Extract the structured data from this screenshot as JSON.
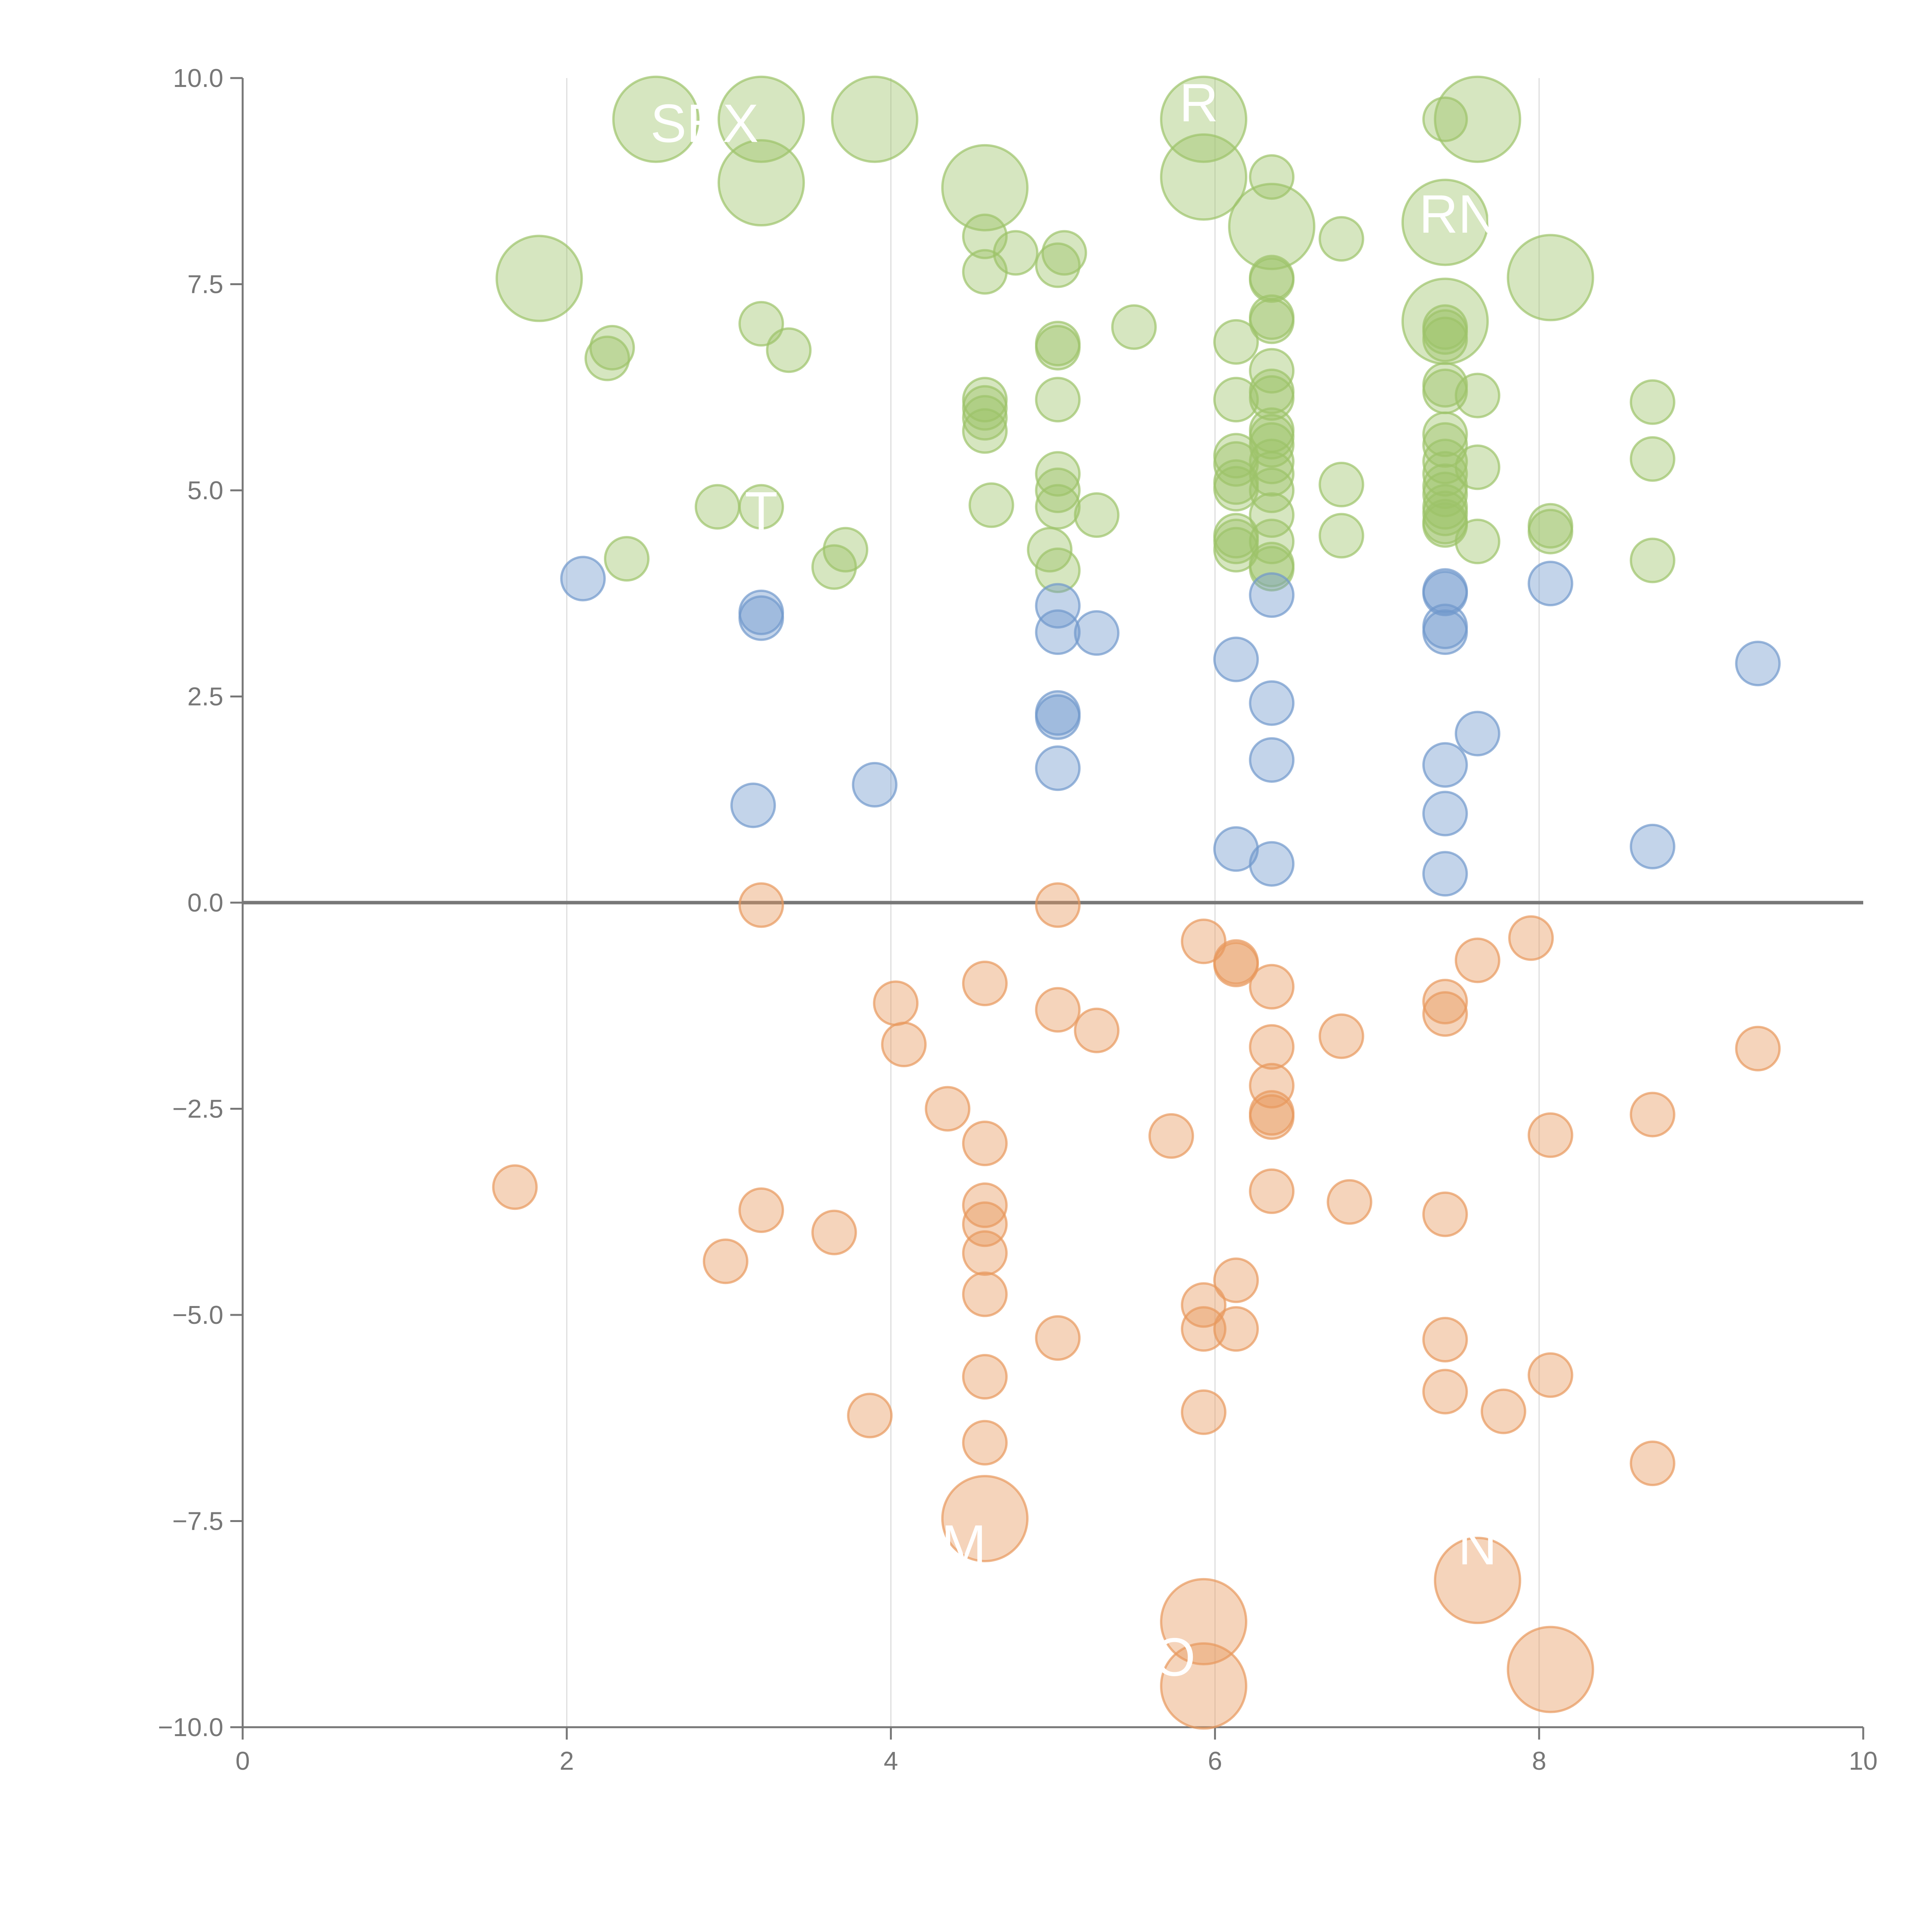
{
  "colors": {
    "positive_high": "#9dc36a",
    "positive_low": "#7098cc",
    "negative": "#e8995c",
    "axis": "#777777",
    "grid": "#dddddd"
  },
  "chart_data": {
    "type": "scatter",
    "title": "",
    "xlabel": "",
    "ylabel": "",
    "xlim": [
      0,
      10
    ],
    "ylim": [
      -10,
      10
    ],
    "x_ticks": [
      "0",
      "2",
      "4",
      "6",
      "8",
      "10"
    ],
    "y_ticks": [
      "10.0",
      "7.5",
      "5.0",
      "2.5",
      "0.0",
      "−2.5",
      "−5.0",
      "−7.5",
      "−10.0"
    ],
    "x_tick_values": [
      0,
      2,
      4,
      6,
      8,
      10
    ],
    "y_tick_values": [
      10,
      7.5,
      5,
      2.5,
      0,
      -2.5,
      -5,
      -7.5,
      -10
    ],
    "grid_x": [
      2,
      4,
      6,
      8
    ],
    "zero_line": 0,
    "series": [
      {
        "group": "positive_high",
        "points": [
          [
            2.55,
            9.5,
            1
          ],
          [
            3.2,
            9.5,
            1
          ],
          [
            3.9,
            9.5,
            1
          ],
          [
            5.93,
            9.5,
            1
          ],
          [
            7.42,
            9.5,
            0
          ],
          [
            7.62,
            9.5,
            1
          ],
          [
            3.2,
            8.73,
            1
          ],
          [
            4.58,
            8.67,
            1
          ],
          [
            5.93,
            8.8,
            1
          ],
          [
            6.35,
            8.8,
            0
          ],
          [
            6.35,
            8.2,
            1
          ],
          [
            7.42,
            8.25,
            1
          ],
          [
            6.78,
            8.05,
            0
          ],
          [
            1.83,
            7.57,
            1
          ],
          [
            4.58,
            8.08,
            0
          ],
          [
            4.77,
            7.88,
            0
          ],
          [
            5.07,
            7.88,
            0
          ],
          [
            5.03,
            7.73,
            0
          ],
          [
            4.58,
            7.65,
            0
          ],
          [
            8.07,
            7.58,
            1
          ],
          [
            6.35,
            7.58,
            0
          ],
          [
            6.35,
            7.55,
            0
          ],
          [
            7.42,
            7.05,
            1
          ],
          [
            6.35,
            7.1,
            0
          ],
          [
            6.35,
            7.05,
            0
          ],
          [
            2.28,
            6.73,
            0
          ],
          [
            2.25,
            6.6,
            0
          ],
          [
            3.2,
            7.02,
            0
          ],
          [
            3.37,
            6.7,
            0
          ],
          [
            5.5,
            6.98,
            0
          ],
          [
            5.03,
            6.78,
            0
          ],
          [
            5.03,
            6.73,
            0
          ],
          [
            6.13,
            6.8,
            0
          ],
          [
            7.42,
            6.83,
            0
          ],
          [
            7.42,
            6.92,
            0
          ],
          [
            7.42,
            6.98,
            0
          ],
          [
            6.35,
            6.45,
            0
          ],
          [
            6.35,
            6.2,
            0
          ],
          [
            6.35,
            6.12,
            0
          ],
          [
            7.42,
            6.28,
            0
          ],
          [
            7.42,
            6.2,
            0
          ],
          [
            7.62,
            6.15,
            0
          ],
          [
            4.58,
            6.1,
            0
          ],
          [
            4.58,
            6.0,
            0
          ],
          [
            4.58,
            5.88,
            0
          ],
          [
            4.58,
            5.72,
            0
          ],
          [
            5.03,
            6.1,
            0
          ],
          [
            6.13,
            6.1,
            0
          ],
          [
            8.7,
            6.07,
            0
          ],
          [
            6.35,
            5.73,
            0
          ],
          [
            6.35,
            5.65,
            0
          ],
          [
            6.35,
            5.55,
            0
          ],
          [
            7.42,
            5.68,
            0
          ],
          [
            7.42,
            5.55,
            0
          ],
          [
            6.13,
            5.42,
            0
          ],
          [
            6.13,
            5.32,
            0
          ],
          [
            6.35,
            5.35,
            0
          ],
          [
            6.35,
            5.2,
            0
          ],
          [
            7.42,
            5.35,
            0
          ],
          [
            7.42,
            5.2,
            0
          ],
          [
            7.62,
            5.28,
            0
          ],
          [
            8.7,
            5.38,
            0
          ],
          [
            5.03,
            5.2,
            0
          ],
          [
            5.03,
            5.0,
            0
          ],
          [
            5.03,
            4.8,
            0
          ],
          [
            6.13,
            5.1,
            0
          ],
          [
            6.13,
            5.02,
            0
          ],
          [
            6.35,
            5.0,
            0
          ],
          [
            6.78,
            5.07,
            0
          ],
          [
            7.42,
            5.05,
            0
          ],
          [
            7.42,
            4.95,
            0
          ],
          [
            7.42,
            4.8,
            0
          ],
          [
            7.42,
            4.72,
            0
          ],
          [
            7.42,
            4.62,
            0
          ],
          [
            7.42,
            4.58,
            0
          ],
          [
            2.93,
            4.8,
            0
          ],
          [
            3.2,
            4.8,
            0
          ],
          [
            4.62,
            4.82,
            0
          ],
          [
            5.27,
            4.7,
            0
          ],
          [
            6.35,
            4.7,
            0
          ],
          [
            8.07,
            4.57,
            0
          ],
          [
            8.07,
            4.5,
            0
          ],
          [
            6.13,
            4.45,
            0
          ],
          [
            6.13,
            4.38,
            0
          ],
          [
            6.13,
            4.28,
            0
          ],
          [
            6.35,
            4.38,
            0
          ],
          [
            6.35,
            4.1,
            0
          ],
          [
            6.35,
            4.05,
            0
          ],
          [
            6.78,
            4.45,
            0
          ],
          [
            7.62,
            4.38,
            0
          ],
          [
            2.37,
            4.17,
            0
          ],
          [
            3.72,
            4.28,
            0
          ],
          [
            3.65,
            4.07,
            0
          ],
          [
            4.98,
            4.28,
            0
          ],
          [
            5.03,
            4.03,
            0
          ],
          [
            8.7,
            4.15,
            0
          ]
        ]
      },
      {
        "group": "positive_low",
        "points": [
          [
            2.1,
            3.93,
            0
          ],
          [
            3.2,
            3.52,
            0
          ],
          [
            3.2,
            3.45,
            0
          ],
          [
            5.03,
            3.6,
            0
          ],
          [
            5.03,
            3.28,
            0
          ],
          [
            5.27,
            3.27,
            0
          ],
          [
            6.35,
            3.73,
            0
          ],
          [
            7.42,
            3.78,
            0
          ],
          [
            7.42,
            3.75,
            0
          ],
          [
            7.42,
            3.35,
            0
          ],
          [
            7.42,
            3.28,
            0
          ],
          [
            8.07,
            3.87,
            0
          ],
          [
            6.13,
            2.95,
            0
          ],
          [
            9.35,
            2.9,
            0
          ],
          [
            6.35,
            2.42,
            0
          ],
          [
            5.03,
            2.3,
            0
          ],
          [
            5.03,
            2.25,
            0
          ],
          [
            7.62,
            2.05,
            0
          ],
          [
            6.35,
            1.73,
            0
          ],
          [
            7.42,
            1.67,
            0
          ],
          [
            5.03,
            1.63,
            0
          ],
          [
            3.9,
            1.43,
            0
          ],
          [
            3.15,
            1.18,
            0
          ],
          [
            7.42,
            1.08,
            0
          ],
          [
            6.13,
            0.65,
            0
          ],
          [
            8.7,
            0.68,
            0
          ],
          [
            6.35,
            0.47,
            0
          ],
          [
            7.42,
            0.35,
            0
          ]
        ]
      },
      {
        "group": "negative",
        "points": [
          [
            3.2,
            -0.03,
            0
          ],
          [
            5.03,
            -0.03,
            0
          ],
          [
            5.93,
            -0.47,
            0
          ],
          [
            6.13,
            -0.72,
            0
          ],
          [
            6.13,
            -0.75,
            0
          ],
          [
            7.62,
            -0.7,
            0
          ],
          [
            7.95,
            -0.43,
            0
          ],
          [
            4.58,
            -0.98,
            0
          ],
          [
            6.35,
            -1.02,
            0
          ],
          [
            4.03,
            -1.22,
            0
          ],
          [
            7.42,
            -1.2,
            0
          ],
          [
            7.42,
            -1.35,
            0
          ],
          [
            5.03,
            -1.3,
            0
          ],
          [
            4.08,
            -1.72,
            0
          ],
          [
            5.27,
            -1.55,
            0
          ],
          [
            6.35,
            -1.75,
            0
          ],
          [
            6.78,
            -1.62,
            0
          ],
          [
            9.35,
            -1.77,
            0
          ],
          [
            6.35,
            -2.22,
            0
          ],
          [
            4.35,
            -2.5,
            0
          ],
          [
            6.35,
            -2.55,
            0
          ],
          [
            6.35,
            -2.6,
            0
          ],
          [
            8.7,
            -2.57,
            0
          ],
          [
            4.58,
            -2.92,
            0
          ],
          [
            5.73,
            -2.83,
            0
          ],
          [
            8.07,
            -2.82,
            0
          ],
          [
            1.68,
            -3.45,
            0
          ],
          [
            6.35,
            -3.5,
            0
          ],
          [
            4.58,
            -3.67,
            0
          ],
          [
            6.83,
            -3.63,
            0
          ],
          [
            3.2,
            -3.73,
            0
          ],
          [
            7.42,
            -3.78,
            0
          ],
          [
            3.65,
            -4.0,
            0
          ],
          [
            4.58,
            -3.9,
            0
          ],
          [
            4.58,
            -4.25,
            0
          ],
          [
            2.98,
            -4.35,
            0
          ],
          [
            6.13,
            -4.58,
            0
          ],
          [
            4.58,
            -4.75,
            0
          ],
          [
            5.93,
            -4.88,
            0
          ],
          [
            5.93,
            -5.17,
            0
          ],
          [
            6.13,
            -5.17,
            0
          ],
          [
            5.03,
            -5.28,
            0
          ],
          [
            7.42,
            -5.3,
            0
          ],
          [
            4.58,
            -5.75,
            0
          ],
          [
            8.07,
            -5.73,
            0
          ],
          [
            7.42,
            -5.93,
            0
          ],
          [
            3.87,
            -6.22,
            0
          ],
          [
            5.93,
            -6.18,
            0
          ],
          [
            7.78,
            -6.17,
            0
          ],
          [
            4.58,
            -6.55,
            0
          ],
          [
            8.7,
            -6.8,
            0
          ],
          [
            4.58,
            -7.47,
            1
          ],
          [
            7.62,
            -8.22,
            1
          ],
          [
            5.93,
            -8.72,
            1
          ],
          [
            5.93,
            -9.5,
            1
          ],
          [
            8.07,
            -9.3,
            1
          ]
        ]
      }
    ],
    "annotations": [
      {
        "text": "SEX",
        "x": 2.85,
        "y": 9.45
      },
      {
        "text": "R",
        "x": 5.9,
        "y": 9.7
      },
      {
        "text": "RN",
        "x": 7.5,
        "y": 8.35
      },
      {
        "text": "T",
        "x": 3.2,
        "y": 4.75
      },
      {
        "text": "M",
        "x": 4.45,
        "y": -7.78
      },
      {
        "text": "N",
        "x": 7.62,
        "y": -7.8
      },
      {
        "text": "O",
        "x": 5.75,
        "y": -9.15
      }
    ]
  }
}
